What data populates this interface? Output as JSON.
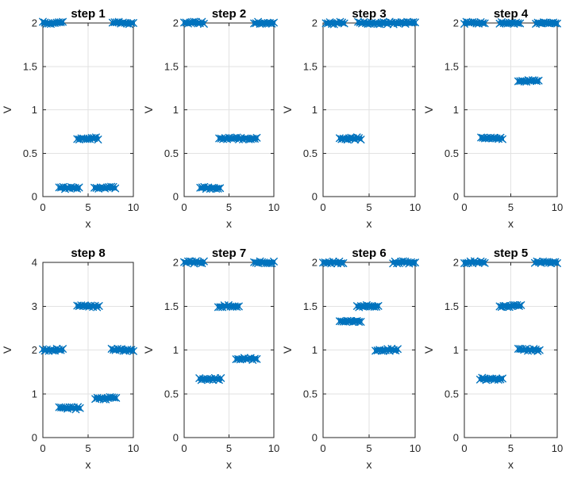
{
  "figure": {
    "background": "#ffffff",
    "marker_color": "#0072BD",
    "axis_color": "#262626",
    "grid_color": "#e2e2e2",
    "title_color": "#000000"
  },
  "chart_data": [
    {
      "type": "scatter",
      "title": "step 1",
      "xlabel": "x",
      "ylabel": "V",
      "xlim": [
        0,
        10
      ],
      "ylim": [
        0,
        2
      ],
      "xticks": [
        "0",
        "5",
        "10"
      ],
      "yticks": [
        "0",
        "0.5",
        "1",
        "1.5",
        "2"
      ],
      "grid": true,
      "marker": "x",
      "series_color": "#0072BD",
      "bands": [
        {
          "y": 2.0,
          "x1": 0.0,
          "x2": 2.2
        },
        {
          "y": 2.0,
          "x1": 7.7,
          "x2": 10.0
        },
        {
          "y": 0.67,
          "x1": 3.8,
          "x2": 6.1
        },
        {
          "y": 0.1,
          "x1": 1.8,
          "x2": 4.0
        },
        {
          "y": 0.1,
          "x1": 5.7,
          "x2": 8.0
        }
      ]
    },
    {
      "type": "scatter",
      "title": "step 2",
      "xlabel": "x",
      "ylabel": "V",
      "xlim": [
        0,
        10
      ],
      "ylim": [
        0,
        2
      ],
      "xticks": [
        "0",
        "5",
        "10"
      ],
      "yticks": [
        "0",
        "0.5",
        "1",
        "1.5",
        "2"
      ],
      "grid": true,
      "marker": "x",
      "series_color": "#0072BD",
      "bands": [
        {
          "y": 2.0,
          "x1": 0.0,
          "x2": 2.2
        },
        {
          "y": 2.0,
          "x1": 7.8,
          "x2": 10.0
        },
        {
          "y": 0.67,
          "x1": 3.9,
          "x2": 8.1
        },
        {
          "y": 0.1,
          "x1": 1.8,
          "x2": 4.0
        }
      ]
    },
    {
      "type": "scatter",
      "title": "step 3",
      "xlabel": "x",
      "ylabel": "V",
      "xlim": [
        0,
        10
      ],
      "ylim": [
        0,
        2
      ],
      "xticks": [
        "0",
        "5",
        "10"
      ],
      "yticks": [
        "0",
        "0.5",
        "1",
        "1.5",
        "2"
      ],
      "grid": true,
      "marker": "x",
      "series_color": "#0072BD",
      "bands": [
        {
          "y": 2.0,
          "x1": 0.3,
          "x2": 2.3
        },
        {
          "y": 2.0,
          "x1": 3.8,
          "x2": 10.0
        },
        {
          "y": 0.67,
          "x1": 1.8,
          "x2": 4.1
        }
      ]
    },
    {
      "type": "scatter",
      "title": "step 4",
      "xlabel": "x",
      "ylabel": "V",
      "xlim": [
        0,
        10
      ],
      "ylim": [
        0,
        2
      ],
      "xticks": [
        "0",
        "5",
        "10"
      ],
      "yticks": [
        "0",
        "0.5",
        "1",
        "1.5",
        "2"
      ],
      "grid": true,
      "marker": "x",
      "series_color": "#0072BD",
      "bands": [
        {
          "y": 2.0,
          "x1": 0.0,
          "x2": 2.2
        },
        {
          "y": 2.0,
          "x1": 3.8,
          "x2": 6.0
        },
        {
          "y": 2.0,
          "x1": 7.7,
          "x2": 10.0
        },
        {
          "y": 1.33,
          "x1": 5.8,
          "x2": 8.0
        },
        {
          "y": 0.67,
          "x1": 1.8,
          "x2": 4.1
        }
      ]
    },
    {
      "type": "scatter",
      "title": "step 8",
      "xlabel": "x",
      "ylabel": "V",
      "xlim": [
        0,
        10
      ],
      "ylim": [
        0,
        4
      ],
      "xticks": [
        "0",
        "5",
        "10"
      ],
      "yticks": [
        "0",
        "1",
        "2",
        "3",
        "4"
      ],
      "grid": true,
      "marker": "x",
      "series_color": "#0072BD",
      "bands": [
        {
          "y": 3.0,
          "x1": 3.8,
          "x2": 6.2
        },
        {
          "y": 2.0,
          "x1": 0.0,
          "x2": 2.2
        },
        {
          "y": 2.0,
          "x1": 7.6,
          "x2": 10.0
        },
        {
          "y": 0.9,
          "x1": 5.8,
          "x2": 8.1
        },
        {
          "y": 0.67,
          "x1": 1.8,
          "x2": 4.1
        }
      ]
    },
    {
      "type": "scatter",
      "title": "step 7",
      "xlabel": "x",
      "ylabel": "V",
      "xlim": [
        0,
        10
      ],
      "ylim": [
        0,
        2
      ],
      "xticks": [
        "0",
        "5",
        "10"
      ],
      "yticks": [
        "0",
        "0.5",
        "1",
        "1.5",
        "2"
      ],
      "grid": true,
      "marker": "x",
      "series_color": "#0072BD",
      "bands": [
        {
          "y": 2.0,
          "x1": 0.0,
          "x2": 2.2
        },
        {
          "y": 2.0,
          "x1": 7.8,
          "x2": 10.0
        },
        {
          "y": 1.5,
          "x1": 3.8,
          "x2": 6.1
        },
        {
          "y": 0.9,
          "x1": 5.8,
          "x2": 8.1
        },
        {
          "y": 0.67,
          "x1": 1.7,
          "x2": 4.1
        }
      ]
    },
    {
      "type": "scatter",
      "title": "step 6",
      "xlabel": "x",
      "ylabel": "V",
      "xlim": [
        0,
        10
      ],
      "ylim": [
        0,
        2
      ],
      "xticks": [
        "0",
        "5",
        "10"
      ],
      "yticks": [
        "0",
        "0.5",
        "1",
        "1.5",
        "2"
      ],
      "grid": true,
      "marker": "x",
      "series_color": "#0072BD",
      "bands": [
        {
          "y": 2.0,
          "x1": 0.0,
          "x2": 2.2
        },
        {
          "y": 2.0,
          "x1": 7.6,
          "x2": 10.0
        },
        {
          "y": 1.5,
          "x1": 3.7,
          "x2": 6.0
        },
        {
          "y": 1.33,
          "x1": 1.8,
          "x2": 4.1
        },
        {
          "y": 1.0,
          "x1": 5.7,
          "x2": 8.1
        }
      ]
    },
    {
      "type": "scatter",
      "title": "step 5",
      "xlabel": "x",
      "ylabel": "V",
      "xlim": [
        0,
        10
      ],
      "ylim": [
        0,
        2
      ],
      "xticks": [
        "0",
        "5",
        "10"
      ],
      "yticks": [
        "0",
        "0.5",
        "1",
        "1.5",
        "2"
      ],
      "grid": true,
      "marker": "x",
      "series_color": "#0072BD",
      "bands": [
        {
          "y": 2.0,
          "x1": 0.0,
          "x2": 2.2
        },
        {
          "y": 2.0,
          "x1": 7.6,
          "x2": 10.0
        },
        {
          "y": 1.5,
          "x1": 3.8,
          "x2": 6.1
        },
        {
          "y": 1.0,
          "x1": 5.8,
          "x2": 8.1
        },
        {
          "y": 0.67,
          "x1": 1.7,
          "x2": 4.1
        }
      ]
    }
  ]
}
